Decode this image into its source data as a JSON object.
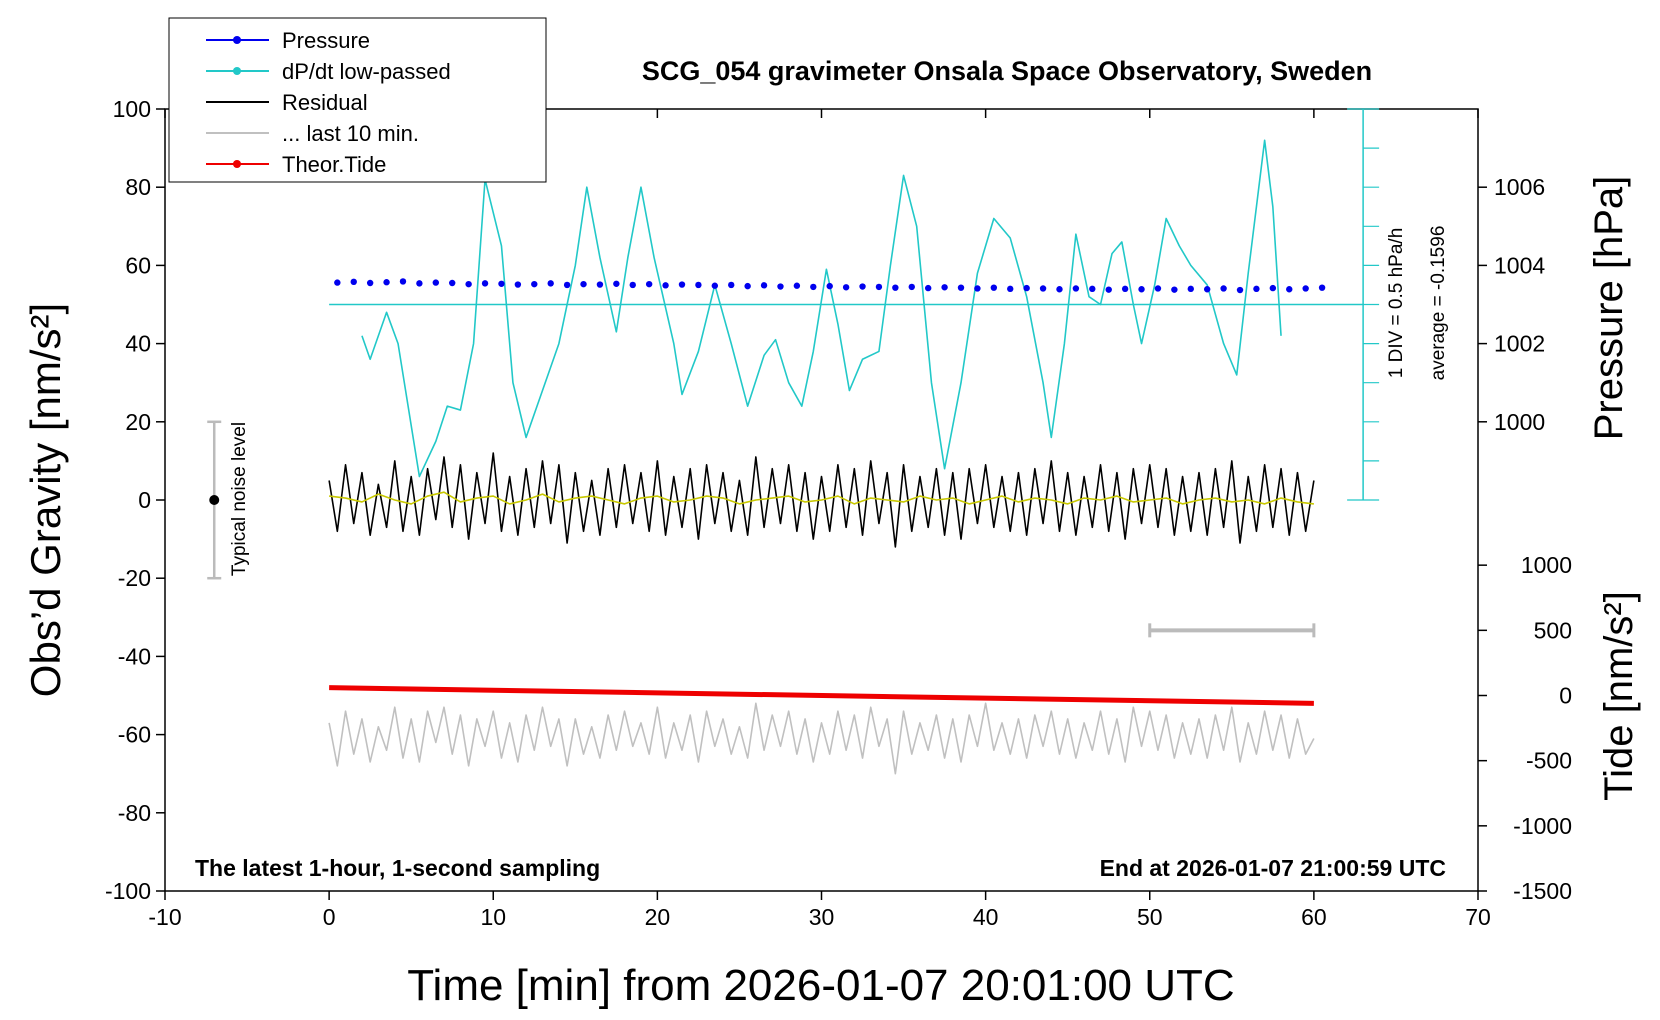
{
  "chart_data": {
    "type": "line",
    "title": "SCG_054 gravimeter Onsala Space Observatory, Sweden",
    "x_label": "Time [min] from 2026-01-07 20:01:00 UTC",
    "y_label": "Obs’d Gravity [nm/s²]",
    "y2_label": "Pressure [hPa]",
    "y3_label": "Tide [nm/s²]",
    "xlim": [
      -10,
      70
    ],
    "xticks": [
      -10,
      0,
      10,
      20,
      30,
      40,
      50,
      60,
      70
    ],
    "ylim": [
      -100,
      100
    ],
    "yticks": [
      -100,
      -80,
      -60,
      -40,
      -20,
      0,
      20,
      40,
      60,
      80,
      100
    ],
    "y2lim": [
      988,
      1008
    ],
    "y2ticks": [
      1000,
      1002,
      1004,
      1006
    ],
    "y3lim": [
      -1500,
      4500
    ],
    "y3ticks": [
      -1500,
      -1000,
      -500,
      0,
      500,
      1000
    ],
    "legend": "upper left",
    "annotations": {
      "div": "1 DIV = 0.5 hPa/h",
      "average": "average = -0.1596",
      "noise": "Typical noise level",
      "sampling": "The latest 1-hour, 1-second sampling",
      "end": "End at 2026-01-07 21:00:59 UTC"
    },
    "noise_bar": {
      "x": -7,
      "low": -20,
      "high": 20,
      "center": 0
    },
    "last10_bar": {
      "x": [
        50,
        60
      ],
      "y": 500
    },
    "dpdt_axis": {
      "x": 63,
      "baseline": 50,
      "ticks": [
        0,
        10,
        20,
        30,
        40,
        50,
        60,
        70,
        80,
        90,
        100
      ]
    },
    "series": [
      {
        "name": "Pressure",
        "color": "#0000ee",
        "axis": "y2",
        "style": "dots",
        "marker": true,
        "x": [
          0.5,
          1.5,
          2.5,
          3.5,
          4.5,
          5.5,
          6.5,
          7.5,
          8.5,
          9.5,
          10.5,
          11.5,
          12.5,
          13.5,
          14.5,
          15.5,
          16.5,
          17.5,
          18.5,
          19.5,
          20.5,
          21.5,
          22.5,
          23.5,
          24.5,
          25.5,
          26.5,
          27.5,
          28.5,
          29.5,
          30.5,
          31.5,
          32.5,
          33.5,
          34.5,
          35.5,
          36.5,
          37.5,
          38.5,
          39.5,
          40.5,
          41.5,
          42.5,
          43.5,
          44.5,
          45.5,
          46.5,
          47.5,
          48.5,
          49.5,
          50.5,
          51.5,
          52.5,
          53.5,
          54.5,
          55.5,
          56.5,
          57.5,
          58.5,
          59.5,
          60.5
        ],
        "values": [
          1003.56,
          1003.58,
          1003.55,
          1003.57,
          1003.59,
          1003.54,
          1003.56,
          1003.55,
          1003.52,
          1003.54,
          1003.53,
          1003.51,
          1003.52,
          1003.54,
          1003.5,
          1003.52,
          1003.51,
          1003.53,
          1003.5,
          1003.52,
          1003.49,
          1003.51,
          1003.5,
          1003.48,
          1003.5,
          1003.47,
          1003.49,
          1003.46,
          1003.48,
          1003.45,
          1003.47,
          1003.44,
          1003.46,
          1003.45,
          1003.43,
          1003.45,
          1003.42,
          1003.44,
          1003.43,
          1003.41,
          1003.43,
          1003.4,
          1003.42,
          1003.41,
          1003.39,
          1003.41,
          1003.4,
          1003.38,
          1003.4,
          1003.39,
          1003.41,
          1003.38,
          1003.4,
          1003.39,
          1003.41,
          1003.37,
          1003.4,
          1003.42,
          1003.39,
          1003.41,
          1003.43
        ]
      },
      {
        "name": "dP/dt low-passed",
        "color": "#22c8c8",
        "axis": "y",
        "style": "line",
        "marker": true,
        "x": [
          2,
          2.5,
          3.5,
          4.2,
          5.5,
          6.5,
          7.2,
          8,
          8.8,
          9.5,
          10.5,
          11.2,
          12,
          13,
          14,
          15,
          15.7,
          16.5,
          17.5,
          18.2,
          19,
          19.8,
          21,
          21.5,
          22.5,
          23.5,
          24.5,
          25.5,
          26.5,
          27.2,
          28,
          28.8,
          29.5,
          30.3,
          31,
          31.7,
          32.5,
          33.5,
          34.2,
          35,
          35.8,
          36.7,
          37.5,
          38.5,
          39.5,
          40.5,
          41.5,
          42.5,
          43.5,
          44,
          44.8,
          45.5,
          46.3,
          47,
          47.7,
          48.3,
          49,
          49.5,
          50.3,
          51,
          51.8,
          52.5,
          53.5,
          54.5,
          55.3,
          56,
          57,
          57.5,
          58
        ],
        "values": [
          42,
          36,
          48,
          40,
          6,
          15,
          24,
          23,
          40,
          82,
          65,
          30,
          16,
          28,
          40,
          60,
          80,
          62,
          43,
          62,
          80,
          62,
          40,
          27,
          38,
          55,
          40,
          24,
          37,
          41,
          30,
          24,
          38,
          59,
          45,
          28,
          36,
          38,
          60,
          83,
          70,
          30,
          8,
          30,
          58,
          72,
          67,
          52,
          30,
          16,
          40,
          68,
          52,
          50,
          63,
          66,
          50,
          40,
          55,
          72,
          65,
          60,
          55,
          40,
          32,
          58,
          92,
          75,
          42
        ]
      },
      {
        "name": "Residual",
        "color": "#000000",
        "axis": "y",
        "style": "line",
        "marker": false,
        "x": [
          0,
          0.5,
          1,
          1.5,
          2,
          2.5,
          3,
          3.5,
          4,
          4.5,
          5,
          5.5,
          6,
          6.5,
          7,
          7.5,
          8,
          8.5,
          9,
          9.5,
          10,
          10.5,
          11,
          11.5,
          12,
          12.5,
          13,
          13.5,
          14,
          14.5,
          15,
          15.5,
          16,
          16.5,
          17,
          17.5,
          18,
          18.5,
          19,
          19.5,
          20,
          20.5,
          21,
          21.5,
          22,
          22.5,
          23,
          23.5,
          24,
          24.5,
          25,
          25.5,
          26,
          26.5,
          27,
          27.5,
          28,
          28.5,
          29,
          29.5,
          30,
          30.5,
          31,
          31.5,
          32,
          32.5,
          33,
          33.5,
          34,
          34.5,
          35,
          35.5,
          36,
          36.5,
          37,
          37.5,
          38,
          38.5,
          39,
          39.5,
          40,
          40.5,
          41,
          41.5,
          42,
          42.5,
          43,
          43.5,
          44,
          44.5,
          45,
          45.5,
          46,
          46.5,
          47,
          47.5,
          48,
          48.5,
          49,
          49.5,
          50,
          50.5,
          51,
          51.5,
          52,
          52.5,
          53,
          53.5,
          54,
          54.5,
          55,
          55.5,
          56,
          56.5,
          57,
          57.5,
          58,
          58.5,
          59,
          59.5,
          60
        ],
        "values": [
          5,
          -8,
          9,
          -6,
          7,
          -9,
          4,
          -7,
          10,
          -8,
          6,
          -9,
          8,
          -5,
          11,
          -7,
          9,
          -10,
          7,
          -6,
          12,
          -8,
          6,
          -9,
          8,
          -7,
          10,
          -6,
          9,
          -11,
          7,
          -8,
          5,
          -9,
          8,
          -7,
          9,
          -6,
          7,
          -8,
          10,
          -9,
          6,
          -7,
          8,
          -10,
          9,
          -6,
          7,
          -8,
          5,
          -9,
          11,
          -7,
          8,
          -6,
          9,
          -8,
          7,
          -10,
          6,
          -8,
          9,
          -7,
          8,
          -9,
          10,
          -6,
          7,
          -12,
          9,
          -8,
          6,
          -7,
          8,
          -9,
          7,
          -10,
          8,
          -6,
          9,
          -7,
          6,
          -8,
          7,
          -9,
          8,
          -6,
          10,
          -8,
          7,
          -9,
          6,
          -7,
          9,
          -8,
          7,
          -10,
          8,
          -6,
          9,
          -7,
          8,
          -9,
          6,
          -8,
          7,
          -9,
          8,
          -7,
          10,
          -11,
          6,
          -8,
          9,
          -7,
          8,
          -9,
          7,
          -8,
          5
        ]
      },
      {
        "color": "#c8c800",
        "axis": "y",
        "style": "line",
        "marker": false,
        "x": [
          0,
          1,
          2,
          3,
          4,
          5,
          6,
          7,
          8,
          9,
          10,
          11,
          12,
          13,
          14,
          15,
          16,
          17,
          18,
          19,
          20,
          21,
          22,
          23,
          24,
          25,
          26,
          27,
          28,
          29,
          30,
          31,
          32,
          33,
          34,
          35,
          36,
          37,
          38,
          39,
          40,
          41,
          42,
          43,
          44,
          45,
          46,
          47,
          48,
          49,
          50,
          51,
          52,
          53,
          54,
          55,
          56,
          57,
          58,
          59,
          60
        ],
        "values": [
          1,
          0.5,
          -0.5,
          1.5,
          0,
          -1,
          1,
          2,
          -0.5,
          0.5,
          1,
          -1,
          0,
          1.5,
          -0.5,
          0.5,
          1,
          0,
          -1,
          0.5,
          1,
          -0.5,
          0,
          1,
          0.5,
          -1,
          0,
          0.5,
          1,
          -0.5,
          0,
          1,
          -1,
          0.5,
          0,
          -0.5,
          1,
          0,
          0.5,
          -1,
          0,
          1,
          -0.5,
          0.5,
          0,
          -1,
          0.5,
          0,
          1,
          -0.5,
          0,
          0.5,
          -1,
          0,
          0.5,
          -0.5,
          0,
          -1,
          0.5,
          -0.5,
          -1
        ]
      },
      {
        "name": "... last 10 min.",
        "color": "#c0c0c0",
        "axis": "y",
        "style": "line",
        "marker": false,
        "x": [
          0,
          0.5,
          1,
          1.5,
          2,
          2.5,
          3,
          3.5,
          4,
          4.5,
          5,
          5.5,
          6,
          6.5,
          7,
          7.5,
          8,
          8.5,
          9,
          9.5,
          10,
          10.5,
          11,
          11.5,
          12,
          12.5,
          13,
          13.5,
          14,
          14.5,
          15,
          15.5,
          16,
          16.5,
          17,
          17.5,
          18,
          18.5,
          19,
          19.5,
          20,
          20.5,
          21,
          21.5,
          22,
          22.5,
          23,
          23.5,
          24,
          24.5,
          25,
          25.5,
          26,
          26.5,
          27,
          27.5,
          28,
          28.5,
          29,
          29.5,
          30,
          30.5,
          31,
          31.5,
          32,
          32.5,
          33,
          33.5,
          34,
          34.5,
          35,
          35.5,
          36,
          36.5,
          37,
          37.5,
          38,
          38.5,
          39,
          39.5,
          40,
          40.5,
          41,
          41.5,
          42,
          42.5,
          43,
          43.5,
          44,
          44.5,
          45,
          45.5,
          46,
          46.5,
          47,
          47.5,
          48,
          48.5,
          49,
          49.5,
          50,
          50.5,
          51,
          51.5,
          52,
          52.5,
          53,
          53.5,
          54,
          54.5,
          55,
          55.5,
          56,
          56.5,
          57,
          57.5,
          58,
          58.5,
          59,
          59.5,
          60
        ],
        "values": [
          -57,
          -68,
          -54,
          -65,
          -56,
          -67,
          -58,
          -64,
          -53,
          -66,
          -56,
          -67,
          -54,
          -62,
          -53,
          -65,
          -55,
          -68,
          -56,
          -63,
          -54,
          -66,
          -57,
          -67,
          -55,
          -64,
          -53,
          -63,
          -56,
          -68,
          -56,
          -65,
          -58,
          -66,
          -55,
          -64,
          -54,
          -63,
          -57,
          -65,
          -53,
          -66,
          -57,
          -64,
          -55,
          -67,
          -54,
          -63,
          -56,
          -65,
          -58,
          -66,
          -52,
          -64,
          -55,
          -63,
          -54,
          -65,
          -56,
          -67,
          -57,
          -65,
          -54,
          -64,
          -55,
          -66,
          -53,
          -63,
          -56,
          -70,
          -54,
          -65,
          -57,
          -64,
          -55,
          -66,
          -56,
          -67,
          -55,
          -63,
          -52,
          -64,
          -57,
          -65,
          -56,
          -66,
          -55,
          -63,
          -54,
          -65,
          -56,
          -66,
          -57,
          -64,
          -54,
          -65,
          -56,
          -67,
          -53,
          -63,
          -54,
          -64,
          -55,
          -66,
          -57,
          -65,
          -56,
          -66,
          -55,
          -64,
          -53,
          -67,
          -57,
          -65,
          -54,
          -64,
          -55,
          -66,
          -56,
          -65,
          -61
        ]
      },
      {
        "name": "Theor.Tide",
        "color": "#ee0000",
        "axis": "y3",
        "style": "thick",
        "marker": true,
        "x": [
          0,
          60
        ],
        "values": [
          60,
          -60
        ]
      }
    ]
  }
}
